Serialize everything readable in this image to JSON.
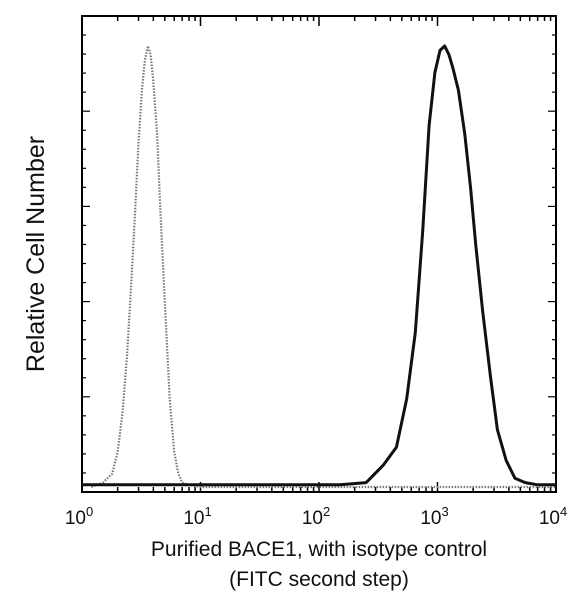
{
  "chart_data": {
    "type": "line",
    "title": "",
    "xlabel_line1": "Purified BACE1, with isotype control",
    "xlabel_line2": "(FITC second step)",
    "ylabel": "Relative Cell Number",
    "x_scale": "log",
    "xlim": [
      1,
      10000
    ],
    "ylim": [
      0,
      100
    ],
    "x_ticks": [
      {
        "value": 1,
        "base": "10",
        "exp": "0"
      },
      {
        "value": 10,
        "base": "10",
        "exp": "1"
      },
      {
        "value": 100,
        "base": "10",
        "exp": "2"
      },
      {
        "value": 1000,
        "base": "10",
        "exp": "3"
      },
      {
        "value": 10000,
        "base": "10",
        "exp": "4"
      }
    ],
    "grid": false,
    "legend": "none",
    "series": [
      {
        "role": "isotype control",
        "style": "dotted",
        "color": "#777777",
        "x": [
          1.2,
          1.5,
          1.8,
          2.0,
          2.2,
          2.4,
          2.6,
          2.8,
          3.0,
          3.2,
          3.4,
          3.6,
          3.8,
          4.0,
          4.3,
          4.6,
          5.0,
          5.5,
          6.0,
          6.5,
          7.0,
          8.0,
          10.0,
          20.0,
          100.0,
          1000.0,
          10000.0
        ],
        "y": [
          0,
          1,
          3,
          8,
          17,
          30,
          46,
          62,
          78,
          90,
          97,
          100,
          98,
          92,
          80,
          62,
          42,
          20,
          8,
          3,
          1,
          0.5,
          0,
          0,
          0,
          0,
          0
        ]
      },
      {
        "role": "purified BACE1",
        "style": "solid",
        "color": "#111111",
        "x": [
          1.0,
          10.0,
          50.0,
          150.0,
          250.0,
          350.0,
          450.0,
          550.0,
          650.0,
          750.0,
          850.0,
          950.0,
          1050.0,
          1150.0,
          1250.0,
          1350.0,
          1500.0,
          1700.0,
          1900.0,
          2100.0,
          2400.0,
          2800.0,
          3200.0,
          3800.0,
          4500.0,
          5500.0,
          7000.0,
          10000.0
        ],
        "y": [
          0.5,
          0.5,
          0.5,
          0.5,
          1,
          5,
          9,
          20,
          35,
          58,
          82,
          94,
          99,
          100,
          98,
          95,
          90,
          80,
          68,
          55,
          40,
          25,
          13,
          6,
          2,
          1,
          0.5,
          0.5
        ]
      }
    ]
  }
}
